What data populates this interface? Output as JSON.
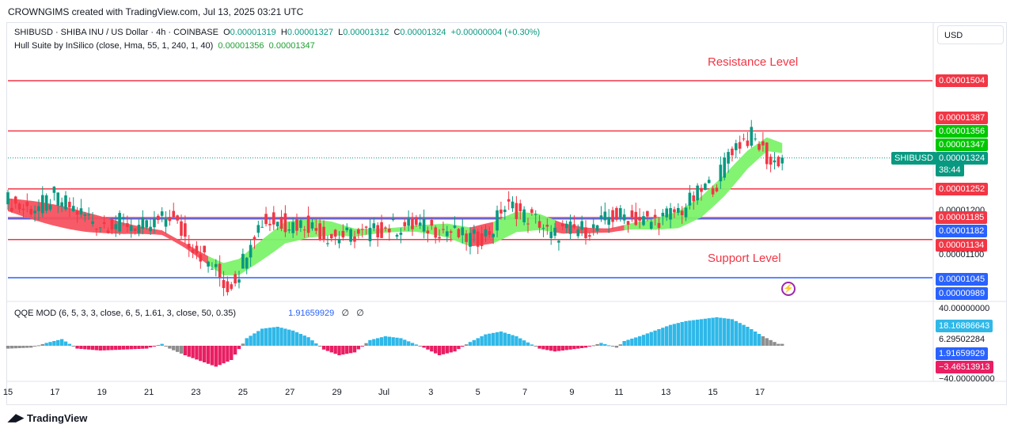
{
  "header": {
    "created_by": "CROWNGIMS created with TradingView.com, Jul 13, 2025 03:21 UTC"
  },
  "legend": {
    "symbol": "SHIBUSD · SHIBA INU / US Dollar · 4h · COINBASE",
    "o_label": "O",
    "o": "0.00001319",
    "h_label": "H",
    "h": "0.00001327",
    "l_label": "L",
    "l": "0.00001312",
    "c_label": "C",
    "c": "0.00001324",
    "change": "+0.00000004 (+0.30%)",
    "indicator": "Hull Suite by InSilico (close, Hma, 55, 1, 240, 1, 40)",
    "hull_1": "0.00001356",
    "hull_2": "0.00001347",
    "qqe": "QQE MOD (6, 5, 3, 3, close, 6, 5, 1.61, 3, close, 50, 0.35)",
    "qqe_value": "1.91659929",
    "qqe_null_1": "∅",
    "qqe_null_2": "∅"
  },
  "currency_button": "USD",
  "annotations": {
    "resistance": "Resistance Level",
    "support": "Support Level"
  },
  "price_tags": {
    "p1504": "0.00001504",
    "p1387": "0.00001387",
    "p1356": "0.00001356",
    "p1347": "0.00001347",
    "p1324": "0.00001324",
    "countdown": "38:44",
    "symbol_tag": "SHIBUSD",
    "p1252": "0.00001252",
    "p1200": "0.00001200",
    "p1185": "0.00001185",
    "p1182": "0.00001182",
    "p1134": "0.00001134",
    "p1100": "0.00001100",
    "p1045": "0.00001045",
    "p989": "0.00000989"
  },
  "qqe_tags": {
    "q40": "40.00000000",
    "q18": "18.16886643",
    "q6": "6.29502284",
    "q1": "1.91659929",
    "qneg3": "−3.46513913",
    "qneg40": "−40.00000000"
  },
  "x_ticks": [
    "15",
    "17",
    "19",
    "21",
    "23",
    "25",
    "27",
    "29",
    "Jul",
    "3",
    "5",
    "7",
    "9",
    "11",
    "13",
    "15",
    "17"
  ],
  "branding": "TradingView",
  "colors": {
    "up": "#089981",
    "down": "#f23645",
    "hull_up": "#7cf26a",
    "hull_down": "#f7525f",
    "resistance": "#f23645",
    "support_blue": "#2962ff",
    "qqe_up": "#2fb8e8",
    "qqe_down": "#e91e63",
    "qqe_neutral": "#8e8e8e"
  },
  "chart_data": [
    {
      "type": "candlestick",
      "title": "SHIBUSD · SHIBA INU / US Dollar · 4h · COINBASE",
      "x_range": [
        "Jun 15",
        "Jul 18"
      ],
      "ylim": [
        9.7e-06,
        1.56e-05
      ],
      "horizontal_lines": [
        {
          "value": 1.387e-05,
          "color": "#f23645"
        },
        {
          "value": 1.504e-05,
          "color": "#f23645"
        },
        {
          "value": 1.252e-05,
          "color": "#f23645"
        },
        {
          "value": 1.185e-05,
          "color": "#f23645"
        },
        {
          "value": 1.182e-05,
          "color": "#2962ff"
        },
        {
          "value": 1.134e-05,
          "color": "#f23645"
        },
        {
          "value": 1.045e-05,
          "color": "#2962ff"
        }
      ],
      "last_price": 1.324e-05,
      "hull_values": [
        1.356e-05,
        1.347e-05
      ],
      "close_path": [
        [
          0,
          1.225e-05
        ],
        [
          4,
          1.205e-05
        ],
        [
          8,
          1.21e-05
        ],
        [
          12,
          1.235e-05
        ],
        [
          18,
          1.2e-05
        ],
        [
          24,
          1.17e-05
        ],
        [
          30,
          1.175e-05
        ],
        [
          36,
          1.16e-05
        ],
        [
          42,
          1.19e-05
        ],
        [
          46,
          1.14e-05
        ],
        [
          50,
          1.1e-05
        ],
        [
          54,
          1.06e-05
        ],
        [
          57,
          1.02e-05
        ],
        [
          60,
          1.06e-05
        ],
        [
          63,
          1.14e-05
        ],
        [
          66,
          1.175e-05
        ],
        [
          70,
          1.175e-05
        ],
        [
          74,
          1.17e-05
        ],
        [
          78,
          1.17e-05
        ],
        [
          82,
          1.145e-05
        ],
        [
          86,
          1.14e-05
        ],
        [
          90,
          1.145e-05
        ],
        [
          94,
          1.15e-05
        ],
        [
          98,
          1.16e-05
        ],
        [
          102,
          1.165e-05
        ],
        [
          106,
          1.165e-05
        ],
        [
          110,
          1.16e-05
        ],
        [
          114,
          1.155e-05
        ],
        [
          118,
          1.14e-05
        ],
        [
          122,
          1.135e-05
        ],
        [
          126,
          1.16e-05
        ],
        [
          128,
          1.205e-05
        ],
        [
          131,
          1.21e-05
        ],
        [
          134,
          1.19e-05
        ],
        [
          138,
          1.175e-05
        ],
        [
          141,
          1.14e-05
        ],
        [
          144,
          1.155e-05
        ],
        [
          148,
          1.158e-05
        ],
        [
          152,
          1.16e-05
        ],
        [
          156,
          1.185e-05
        ],
        [
          160,
          1.19e-05
        ],
        [
          164,
          1.18e-05
        ],
        [
          167,
          1.175e-05
        ],
        [
          171,
          1.19e-05
        ],
        [
          175,
          1.205e-05
        ],
        [
          178,
          1.23e-05
        ],
        [
          181,
          1.255e-05
        ],
        [
          184,
          1.265e-05
        ],
        [
          187,
          1.34e-05
        ],
        [
          190,
          1.36e-05
        ],
        [
          193,
          1.375e-05
        ],
        [
          196,
          1.34e-05
        ],
        [
          198,
          1.31e-05
        ],
        [
          201,
          1.324e-05
        ]
      ],
      "hull_path": [
        [
          0,
          1.215e-05
        ],
        [
          10,
          1.195e-05
        ],
        [
          20,
          1.175e-05
        ],
        [
          30,
          1.16e-05
        ],
        [
          40,
          1.15e-05
        ],
        [
          46,
          1.12e-05
        ],
        [
          52,
          1.085e-05
        ],
        [
          56,
          1.065e-05
        ],
        [
          60,
          1.07e-05
        ],
        [
          66,
          1.11e-05
        ],
        [
          72,
          1.15e-05
        ],
        [
          78,
          1.16e-05
        ],
        [
          84,
          1.16e-05
        ],
        [
          90,
          1.15e-05
        ],
        [
          98,
          1.155e-05
        ],
        [
          106,
          1.16e-05
        ],
        [
          114,
          1.155e-05
        ],
        [
          120,
          1.14e-05
        ],
        [
          126,
          1.15e-05
        ],
        [
          132,
          1.175e-05
        ],
        [
          138,
          1.175e-05
        ],
        [
          144,
          1.16e-05
        ],
        [
          150,
          1.155e-05
        ],
        [
          156,
          1.155e-05
        ],
        [
          162,
          1.165e-05
        ],
        [
          168,
          1.17e-05
        ],
        [
          174,
          1.18e-05
        ],
        [
          180,
          1.21e-05
        ],
        [
          186,
          1.26e-05
        ],
        [
          192,
          1.32e-05
        ],
        [
          197,
          1.356e-05
        ],
        [
          201,
          1.347e-05
        ]
      ],
      "hull_color_by_segment": [
        [
          0,
          52,
          "down"
        ],
        [
          52,
          120,
          "up"
        ],
        [
          120,
          126,
          "down"
        ],
        [
          126,
          142,
          "up"
        ],
        [
          142,
          160,
          "down"
        ],
        [
          160,
          201,
          "up"
        ]
      ]
    },
    {
      "type": "histogram",
      "title": "QQE MOD (6, 5, 3, 3, close, 6, 5, 1.61, 3, close, 50, 0.35)",
      "ylim": [
        -40,
        40
      ],
      "levels": [
        40,
        18.16886643,
        6.29502284,
        1.91659929,
        -3.46513913,
        -40
      ],
      "bars_sampled": [
        [
          0,
          -3,
          "neutral"
        ],
        [
          6,
          -2,
          "neutral"
        ],
        [
          10,
          3,
          "up"
        ],
        [
          14,
          7,
          "up"
        ],
        [
          18,
          -3,
          "down"
        ],
        [
          24,
          -5,
          "down"
        ],
        [
          30,
          -4,
          "down"
        ],
        [
          36,
          -3,
          "down"
        ],
        [
          40,
          2,
          "up"
        ],
        [
          42,
          -3,
          "neutral"
        ],
        [
          46,
          -10,
          "down"
        ],
        [
          50,
          -16,
          "down"
        ],
        [
          54,
          -22,
          "down"
        ],
        [
          58,
          -15,
          "down"
        ],
        [
          62,
          8,
          "up"
        ],
        [
          66,
          18,
          "up"
        ],
        [
          70,
          20,
          "up"
        ],
        [
          74,
          16,
          "up"
        ],
        [
          78,
          9,
          "up"
        ],
        [
          82,
          -4,
          "down"
        ],
        [
          86,
          -10,
          "down"
        ],
        [
          90,
          -7,
          "down"
        ],
        [
          94,
          6,
          "up"
        ],
        [
          98,
          10,
          "up"
        ],
        [
          102,
          8,
          "up"
        ],
        [
          108,
          -2,
          "down"
        ],
        [
          112,
          -10,
          "down"
        ],
        [
          116,
          -6,
          "down"
        ],
        [
          120,
          4,
          "up"
        ],
        [
          124,
          12,
          "up"
        ],
        [
          128,
          15,
          "up"
        ],
        [
          132,
          10,
          "up"
        ],
        [
          138,
          -3,
          "down"
        ],
        [
          142,
          -6,
          "down"
        ],
        [
          146,
          -4,
          "down"
        ],
        [
          150,
          -2,
          "down"
        ],
        [
          154,
          3,
          "up"
        ],
        [
          158,
          -2,
          "neutral"
        ],
        [
          160,
          5,
          "up"
        ],
        [
          164,
          10,
          "up"
        ],
        [
          168,
          16,
          "up"
        ],
        [
          172,
          22,
          "up"
        ],
        [
          176,
          26,
          "up"
        ],
        [
          180,
          28,
          "up"
        ],
        [
          184,
          30,
          "up"
        ],
        [
          188,
          28,
          "up"
        ],
        [
          192,
          20,
          "up"
        ],
        [
          196,
          10,
          "neutral"
        ],
        [
          200,
          2,
          "neutral"
        ]
      ]
    }
  ]
}
